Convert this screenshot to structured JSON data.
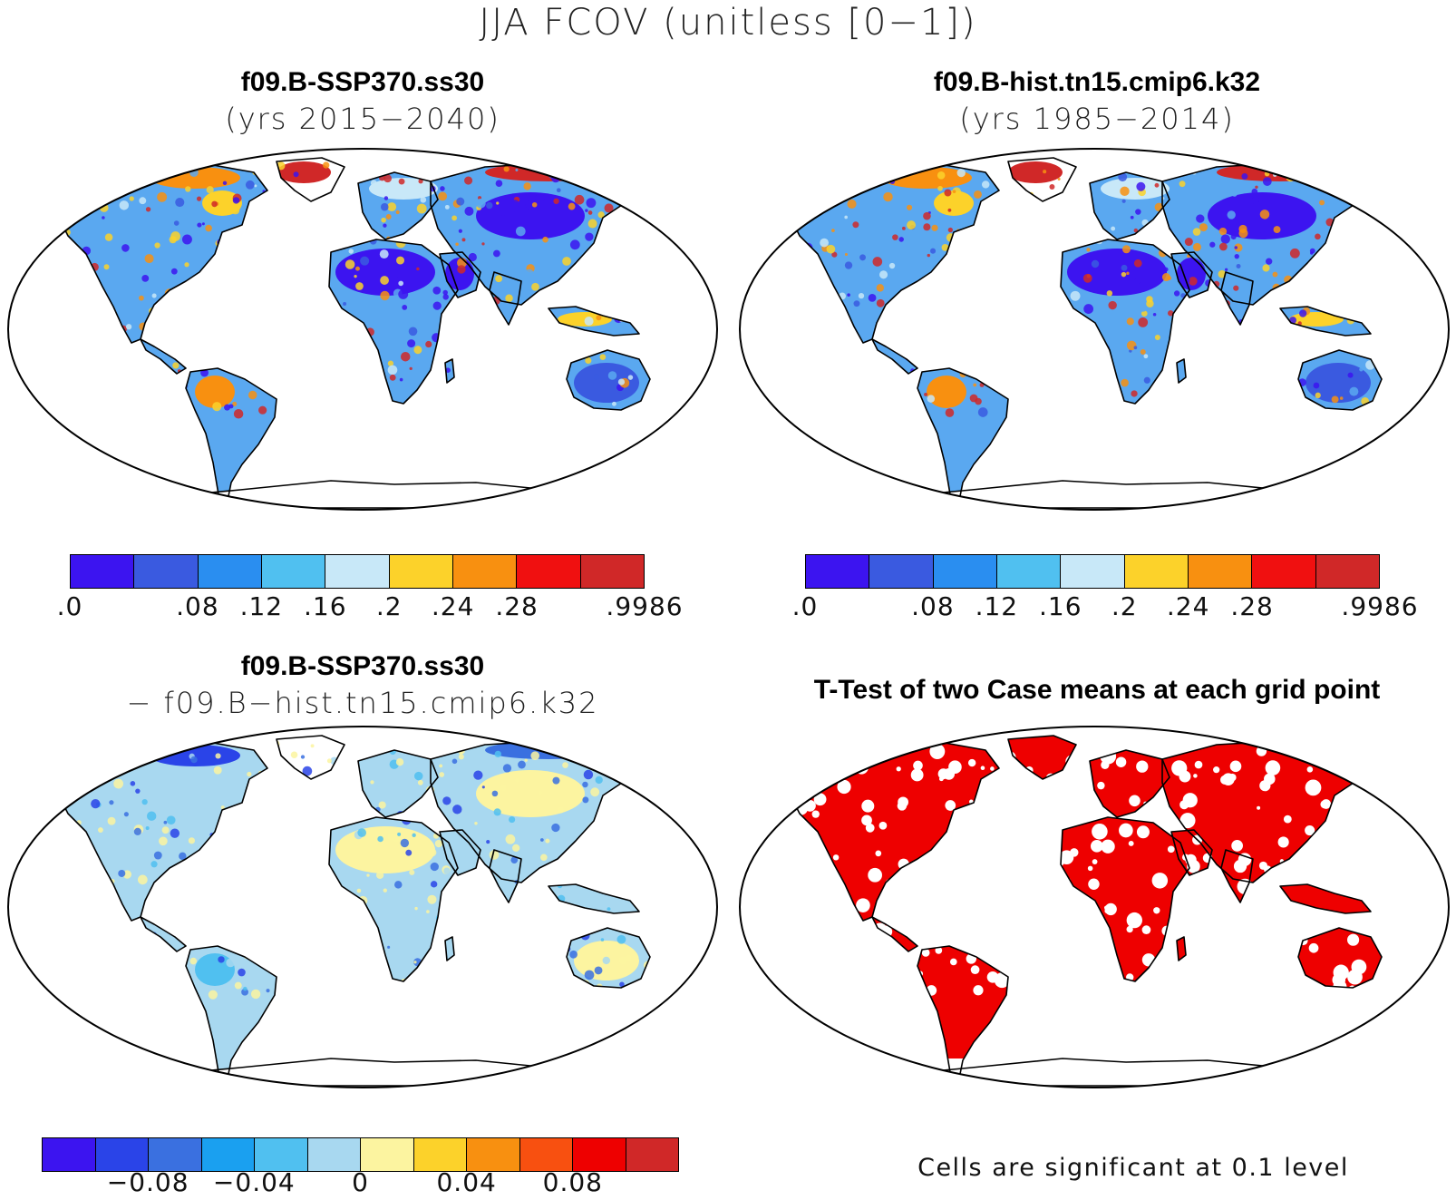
{
  "figure": {
    "title": "JJA FCOV (unitless [0−1])"
  },
  "panels": [
    {
      "id": "case",
      "title": "f09.B-SSP370.ss30",
      "subtitle": "(yrs 2015−2040)"
    },
    {
      "id": "control",
      "title": "f09.B-hist.tn15.cmip6.k32",
      "subtitle": "(yrs 1985−2014)"
    },
    {
      "id": "difference",
      "title": "f09.B-SSP370.ss30",
      "subtitle": "− f09.B−hist.tn15.cmip6.k32"
    },
    {
      "id": "ttest",
      "title": "T-Test of two Case means at each grid point",
      "note": "Cells are significant at 0.1 level",
      "color": "#ee0000"
    }
  ],
  "colorbar_main": {
    "colors": [
      "#3c14f0",
      "#3a5ae0",
      "#2a8ef0",
      "#50c0f0",
      "#c8e8f8",
      "#fcd22a",
      "#f89010",
      "#f01010",
      "#d02828"
    ],
    "labels": [
      ".0",
      ".08",
      ".12",
      ".16",
      ".2",
      ".24",
      ".28",
      ".9986"
    ],
    "label_boundaries": [
      0,
      2,
      3,
      4,
      5,
      6,
      7,
      9
    ]
  },
  "colorbar_diff": {
    "colors": [
      "#3c14f0",
      "#2a44e8",
      "#3a70e0",
      "#1aa0f0",
      "#50c0f0",
      "#a8d8f0",
      "#fcf4a0",
      "#fcd22a",
      "#f89010",
      "#f85010",
      "#ee0000",
      "#d02828"
    ],
    "labels": [
      "−0.08",
      "−0.04",
      "0",
      "0.04",
      "0.08"
    ],
    "label_boundaries": [
      2,
      4,
      6,
      8,
      10
    ]
  },
  "maps": {
    "case": {
      "background": "#5aa8f0",
      "patches": [
        {
          "region": "africa-north",
          "color": "#3c14f0"
        },
        {
          "region": "arabia",
          "color": "#3c14f0"
        },
        {
          "region": "central-asia",
          "color": "#3c14f0"
        },
        {
          "region": "greenland-rim",
          "color": "#d02828"
        },
        {
          "region": "siberia-north",
          "color": "#d02828"
        },
        {
          "region": "canada-north",
          "color": "#f89010"
        },
        {
          "region": "hudson",
          "color": "#fcd22a"
        },
        {
          "region": "amazon-west",
          "color": "#f89010"
        },
        {
          "region": "indonesia",
          "color": "#fcd22a"
        },
        {
          "region": "australia",
          "color": "#3a5ae0"
        },
        {
          "region": "europe-north",
          "color": "#c8e8f8"
        }
      ]
    },
    "control": {
      "background": "#5aa8f0",
      "patches": [
        {
          "region": "africa-north",
          "color": "#3c14f0"
        },
        {
          "region": "arabia",
          "color": "#3c14f0"
        },
        {
          "region": "central-asia",
          "color": "#3c14f0"
        },
        {
          "region": "greenland-rim",
          "color": "#d02828"
        },
        {
          "region": "siberia-north",
          "color": "#d02828"
        },
        {
          "region": "canada-north",
          "color": "#f89010"
        },
        {
          "region": "hudson",
          "color": "#fcd22a"
        },
        {
          "region": "amazon-west",
          "color": "#f89010"
        },
        {
          "region": "indonesia",
          "color": "#fcd22a"
        },
        {
          "region": "australia",
          "color": "#3a5ae0"
        },
        {
          "region": "europe-north",
          "color": "#c8e8f8"
        }
      ]
    },
    "difference": {
      "background": "#a8d8f0",
      "patches": [
        {
          "region": "africa-north",
          "color": "#fcf4a0"
        },
        {
          "region": "amazon-west",
          "color": "#50c0f0"
        },
        {
          "region": "australia",
          "color": "#fcf4a0"
        },
        {
          "region": "canada-north",
          "color": "#2a44e8"
        },
        {
          "region": "siberia-north",
          "color": "#3a70e0"
        },
        {
          "region": "central-asia",
          "color": "#fcf4a0"
        }
      ]
    }
  }
}
